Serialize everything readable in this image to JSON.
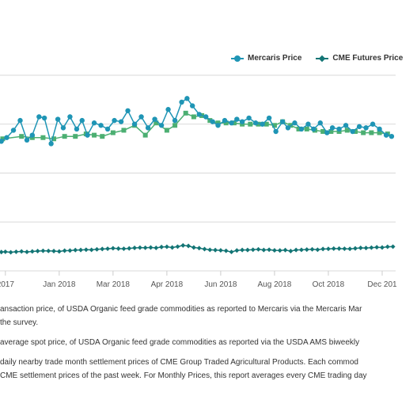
{
  "chart_data": {
    "type": "line",
    "x_tick_labels": [
      "2017",
      "Jan 2018",
      "Mar 2018",
      "Apr 2018",
      "Jun 2018",
      "Aug 2018",
      "Oct 2018",
      "Dec 201"
    ],
    "x_tick_positions": [
      0.0,
      2.0,
      4.0,
      6.0,
      8.0,
      10.0,
      12.0,
      14.0
    ],
    "x_range": [
      -0.2,
      14.5
    ],
    "legend_position": "top-right",
    "grid": true,
    "series": [
      {
        "name": "Mercaris Price",
        "color": "#1f95b5",
        "x": [
          -0.15,
          0.05,
          0.3,
          0.55,
          0.8,
          1.0,
          1.25,
          1.45,
          1.7,
          1.95,
          2.15,
          2.4,
          2.65,
          2.85,
          3.05,
          3.3,
          3.55,
          3.8,
          4.05,
          4.3,
          4.55,
          4.8,
          5.05,
          5.3,
          5.55,
          5.8,
          6.05,
          6.3,
          6.55,
          6.75,
          6.95,
          7.2,
          7.45,
          7.7,
          7.9,
          8.15,
          8.4,
          8.6,
          8.8,
          9.05,
          9.3,
          9.55,
          9.8,
          10.05,
          10.3,
          10.5,
          10.75,
          11.0,
          11.25,
          11.45,
          11.7,
          11.95,
          12.15,
          12.4,
          12.65,
          12.9,
          13.15,
          13.4,
          13.65,
          13.9,
          14.15,
          14.35
        ],
        "values": [
          66,
          69,
          75,
          83,
          67,
          71,
          86,
          85,
          64,
          84,
          77,
          86,
          76,
          83,
          71,
          81,
          79,
          76,
          83,
          82,
          91,
          80,
          86,
          77,
          84,
          79,
          92,
          83,
          98,
          101,
          95,
          88,
          86,
          82,
          79,
          83,
          81,
          84,
          82,
          85,
          81,
          80,
          85,
          74,
          82,
          77,
          81,
          76,
          80,
          76,
          81,
          73,
          77,
          76,
          79,
          74,
          78,
          77,
          80,
          76,
          71,
          70
        ]
      },
      {
        "name": "CME Futures Price",
        "color": "#137575",
        "x": [
          -0.15,
          0.0,
          0.2,
          0.4,
          0.6,
          0.8,
          1.0,
          1.2,
          1.4,
          1.6,
          1.8,
          2.0,
          2.2,
          2.4,
          2.6,
          2.8,
          3.0,
          3.2,
          3.4,
          3.6,
          3.8,
          4.0,
          4.2,
          4.4,
          4.6,
          4.8,
          5.0,
          5.2,
          5.4,
          5.6,
          5.8,
          6.0,
          6.2,
          6.4,
          6.6,
          6.8,
          7.0,
          7.2,
          7.4,
          7.6,
          7.8,
          8.0,
          8.2,
          8.4,
          8.6,
          8.8,
          9.0,
          9.2,
          9.4,
          9.6,
          9.8,
          10.0,
          10.2,
          10.4,
          10.6,
          10.8,
          11.0,
          11.2,
          11.4,
          11.6,
          11.8,
          12.0,
          12.2,
          12.4,
          12.6,
          12.8,
          13.0,
          13.2,
          13.4,
          13.6,
          13.8,
          14.0,
          14.2,
          14.4
        ],
        "values": [
          -24.6,
          -24.4,
          -24.8,
          -24.4,
          -24.1,
          -24.5,
          -24.1,
          -23.8,
          -23.6,
          -23.7,
          -23.8,
          -24.1,
          -23.5,
          -23.4,
          -23.0,
          -22.9,
          -22.7,
          -22.8,
          -22.4,
          -22.1,
          -21.9,
          -21.5,
          -21.8,
          -21.9,
          -21.6,
          -21.2,
          -21.0,
          -21.1,
          -20.9,
          -21.2,
          -20.5,
          -20.3,
          -20.9,
          -20.2,
          -19.2,
          -19.6,
          -20.9,
          -21.4,
          -22.2,
          -22.8,
          -23.0,
          -23.2,
          -23.6,
          -24.5,
          -23.3,
          -22.9,
          -22.9,
          -22.7,
          -22.4,
          -22.9,
          -22.7,
          -23.2,
          -23.3,
          -23.0,
          -23.8,
          -22.9,
          -22.8,
          -22.6,
          -22.4,
          -22.7,
          -22.1,
          -22.0,
          -21.8,
          -21.8,
          -21.9,
          -22.0,
          -21.6,
          -21.2,
          -21.3,
          -21.0,
          -20.7,
          -20.9,
          -20.3,
          -20.2
        ]
      },
      {
        "color": "#4caf72",
        "x": [
          -0.1,
          0.6,
          1.0,
          1.4,
          1.8,
          2.2,
          2.6,
          3.0,
          3.3,
          3.6,
          4.0,
          4.4,
          4.8,
          5.2,
          5.6,
          6.0,
          6.3,
          6.7,
          7.0,
          7.3,
          7.6,
          7.9,
          8.2,
          8.5,
          8.8,
          9.1,
          9.4,
          9.7,
          10.0,
          10.3,
          10.6,
          10.9,
          11.2,
          11.5,
          11.8,
          12.1,
          12.4,
          12.7,
          13.0,
          13.3,
          13.6,
          13.9,
          14.2
        ],
        "values": [
          68,
          70,
          69,
          69,
          68,
          70,
          70,
          72,
          71,
          70,
          73,
          75,
          79,
          71,
          81,
          75,
          79,
          89,
          86,
          87,
          83,
          81,
          81,
          81,
          80,
          80,
          80,
          80,
          79,
          82,
          79,
          76,
          76,
          75,
          74,
          74,
          74,
          75,
          74,
          73,
          73,
          73,
          72
        ]
      }
    ]
  },
  "notes": [
    "ansaction price, of USDA Organic feed grade commodities as reported to Mercaris via the Mercaris Mar",
    "the survey.",
    "average spot price, of USDA Organic feed grade commodities as reported via the USDA AMS biweekly",
    "daily nearby trade month settlement prices of CME Group Traded Agricultural Products. Each commod",
    "CME settlement prices of the past week. For Monthly Prices, this report averages every CME trading day"
  ]
}
